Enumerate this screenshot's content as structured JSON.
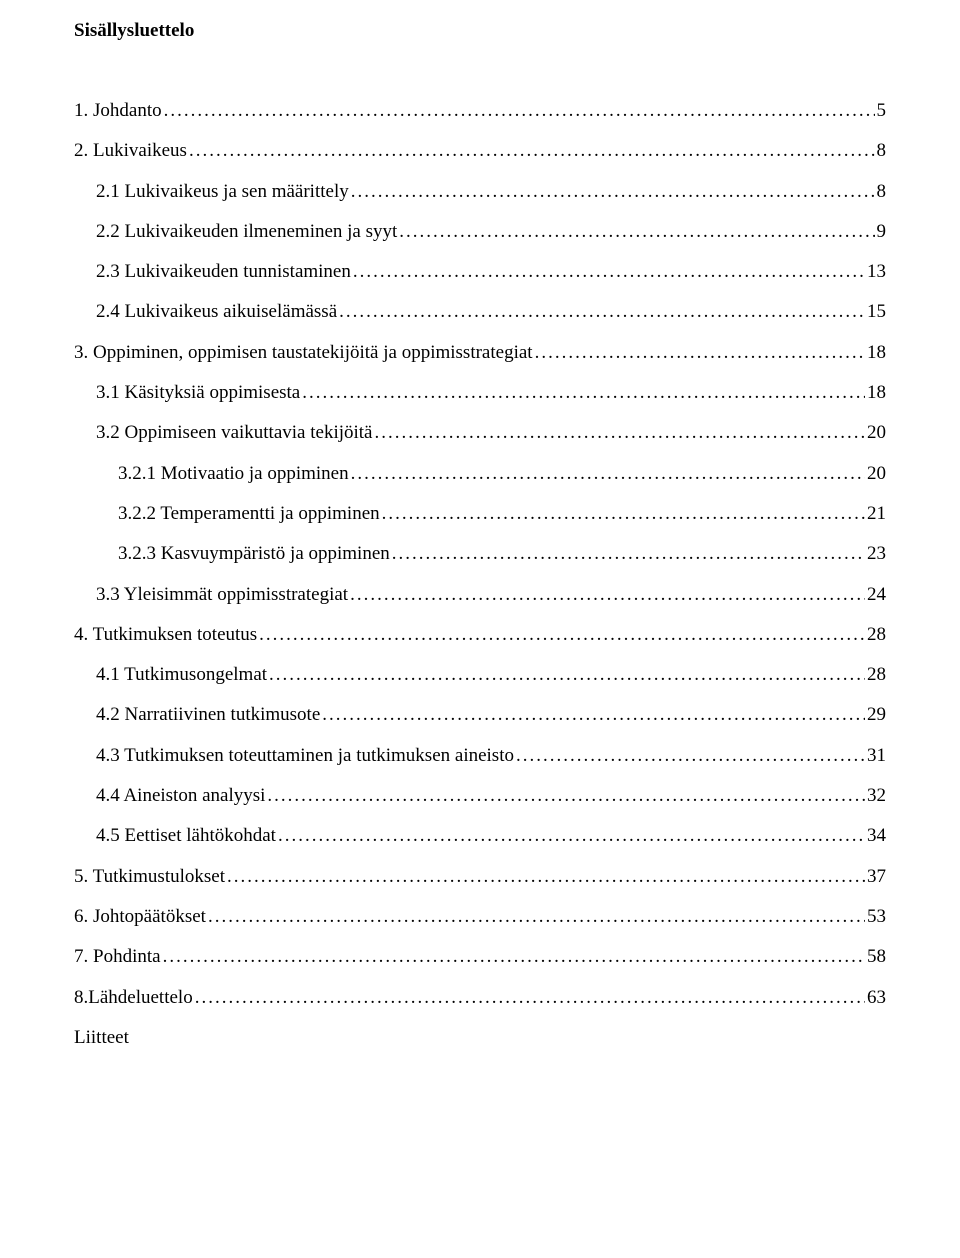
{
  "title": "Sisällysluettelo",
  "liitteet_label": "Liitteet",
  "entries": [
    {
      "label": "1. Johdanto",
      "page": "5",
      "indent": 0
    },
    {
      "label": "2. Lukivaikeus",
      "page": "8",
      "indent": 0
    },
    {
      "label": "2.1 Lukivaikeus ja sen määrittely",
      "page": "8",
      "indent": 1
    },
    {
      "label": "2.2 Lukivaikeuden ilmeneminen ja syyt",
      "page": "9",
      "indent": 1
    },
    {
      "label": "2.3 Lukivaikeuden tunnistaminen",
      "page": "13",
      "indent": 1
    },
    {
      "label": "2.4 Lukivaikeus aikuiselämässä",
      "page": "15",
      "indent": 1
    },
    {
      "label": "3. Oppiminen, oppimisen taustatekijöitä ja oppimisstrategiat",
      "page": "18",
      "indent": 0
    },
    {
      "label": "3.1 Käsityksiä oppimisesta",
      "page": "18",
      "indent": 1
    },
    {
      "label": "3.2 Oppimiseen vaikuttavia tekijöitä",
      "page": "20",
      "indent": 1
    },
    {
      "label": "3.2.1 Motivaatio ja oppiminen",
      "page": "20",
      "indent": 2
    },
    {
      "label": "3.2.2 Temperamentti ja oppiminen",
      "page": "21",
      "indent": 2
    },
    {
      "label": "3.2.3 Kasvuympäristö ja oppiminen",
      "page": "23",
      "indent": 2
    },
    {
      "label": "3.3 Yleisimmät oppimisstrategiat",
      "page": "24",
      "indent": 1
    },
    {
      "label": "4. Tutkimuksen toteutus",
      "page": "28",
      "indent": 0
    },
    {
      "label": "4.1 Tutkimusongelmat",
      "page": "28",
      "indent": 1
    },
    {
      "label": "4.2 Narratiivinen tutkimusote",
      "page": "29",
      "indent": 1
    },
    {
      "label": "4.3 Tutkimuksen toteuttaminen ja tutkimuksen aineisto",
      "page": "31",
      "indent": 1
    },
    {
      "label": "4.4 Aineiston analyysi",
      "page": "32",
      "indent": 1
    },
    {
      "label": "4.5 Eettiset lähtökohdat",
      "page": "34",
      "indent": 1
    },
    {
      "label": "5. Tutkimustulokset",
      "page": "37",
      "indent": 0
    },
    {
      "label": "6. Johtopäätökset",
      "page": "53",
      "indent": 0
    },
    {
      "label": "7. Pohdinta",
      "page": "58",
      "indent": 0
    },
    {
      "label": "8.Lähdeluettelo",
      "page": "63",
      "indent": 0
    }
  ]
}
